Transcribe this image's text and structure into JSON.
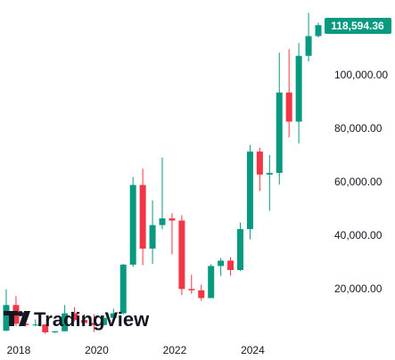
{
  "app": {
    "brand_name": "TradingView"
  },
  "chart_data": {
    "type": "candlestick",
    "interval": "quarterly",
    "colors": {
      "up": "#089981",
      "down": "#f23645",
      "axis_text": "#131722",
      "price_label_bg": "#089981"
    },
    "y_axis": {
      "ticks": [
        20000,
        40000,
        60000,
        80000,
        100000
      ],
      "tick_labels": [
        "20,000.00",
        "40,000.00",
        "60,000.00",
        "80,000.00",
        "100,000.00"
      ],
      "ylim": [
        0,
        123000
      ]
    },
    "x_axis": {
      "tick_labels": [
        "2018",
        "2020",
        "2022",
        "2024"
      ],
      "tick_dates": [
        "2018-01",
        "2020-01",
        "2022-01",
        "2024-01"
      ]
    },
    "last_price_label": "118,594.36",
    "candles": [
      {
        "date": "2017-Q4",
        "o": 4300,
        "h": 19800,
        "l": 4100,
        "c": 13900
      },
      {
        "date": "2018-Q1",
        "o": 13900,
        "h": 17200,
        "l": 6000,
        "c": 6900
      },
      {
        "date": "2018-Q2",
        "o": 6900,
        "h": 9900,
        "l": 5800,
        "c": 6400
      },
      {
        "date": "2018-Q3",
        "o": 6400,
        "h": 8500,
        "l": 5900,
        "c": 6600
      },
      {
        "date": "2018-Q4",
        "o": 6600,
        "h": 6800,
        "l": 3100,
        "c": 3700
      },
      {
        "date": "2019-Q1",
        "o": 3700,
        "h": 4100,
        "l": 3400,
        "c": 4100
      },
      {
        "date": "2019-Q2",
        "o": 4100,
        "h": 13900,
        "l": 4000,
        "c": 10800
      },
      {
        "date": "2019-Q3",
        "o": 10800,
        "h": 13000,
        "l": 7700,
        "c": 8300
      },
      {
        "date": "2019-Q4",
        "o": 8300,
        "h": 10500,
        "l": 6500,
        "c": 7200
      },
      {
        "date": "2020-Q1",
        "o": 7200,
        "h": 10500,
        "l": 3800,
        "c": 6400
      },
      {
        "date": "2020-Q2",
        "o": 6400,
        "h": 10000,
        "l": 6200,
        "c": 9100
      },
      {
        "date": "2020-Q3",
        "o": 9100,
        "h": 12500,
        "l": 8900,
        "c": 10800
      },
      {
        "date": "2020-Q4",
        "o": 10800,
        "h": 29300,
        "l": 10400,
        "c": 29000
      },
      {
        "date": "2021-Q1",
        "o": 29000,
        "h": 61800,
        "l": 28100,
        "c": 58800
      },
      {
        "date": "2021-Q2",
        "o": 58800,
        "h": 64900,
        "l": 28800,
        "c": 35000
      },
      {
        "date": "2021-Q3",
        "o": 35000,
        "h": 53000,
        "l": 29300,
        "c": 43800
      },
      {
        "date": "2021-Q4",
        "o": 43800,
        "h": 69000,
        "l": 42300,
        "c": 46300
      },
      {
        "date": "2022-Q1",
        "o": 46300,
        "h": 48200,
        "l": 32900,
        "c": 45500
      },
      {
        "date": "2022-Q2",
        "o": 45500,
        "h": 47500,
        "l": 17600,
        "c": 19900
      },
      {
        "date": "2022-Q3",
        "o": 19900,
        "h": 25200,
        "l": 18100,
        "c": 19400
      },
      {
        "date": "2022-Q4",
        "o": 19400,
        "h": 21500,
        "l": 15500,
        "c": 16500
      },
      {
        "date": "2023-Q1",
        "o": 16500,
        "h": 29200,
        "l": 16500,
        "c": 28500
      },
      {
        "date": "2023-Q2",
        "o": 28500,
        "h": 31500,
        "l": 24800,
        "c": 30500
      },
      {
        "date": "2023-Q3",
        "o": 30500,
        "h": 31800,
        "l": 24900,
        "c": 27000
      },
      {
        "date": "2023-Q4",
        "o": 27000,
        "h": 44700,
        "l": 26600,
        "c": 42300
      },
      {
        "date": "2024-Q1",
        "o": 42300,
        "h": 73800,
        "l": 38500,
        "c": 71300
      },
      {
        "date": "2024-Q2",
        "o": 71300,
        "h": 72700,
        "l": 56500,
        "c": 62700
      },
      {
        "date": "2024-Q3",
        "o": 62700,
        "h": 70000,
        "l": 49100,
        "c": 63300
      },
      {
        "date": "2024-Q4",
        "o": 63300,
        "h": 108300,
        "l": 58900,
        "c": 93400
      },
      {
        "date": "2025-Q1",
        "o": 93400,
        "h": 109600,
        "l": 76600,
        "c": 82500
      },
      {
        "date": "2025-Q2",
        "o": 82500,
        "h": 111900,
        "l": 74400,
        "c": 107100
      },
      {
        "date": "2025-Q3",
        "o": 107100,
        "h": 123200,
        "l": 105000,
        "c": 114500
      },
      {
        "date": "2025-Q4",
        "o": 114500,
        "h": 119500,
        "l": 114000,
        "c": 118594
      }
    ]
  }
}
